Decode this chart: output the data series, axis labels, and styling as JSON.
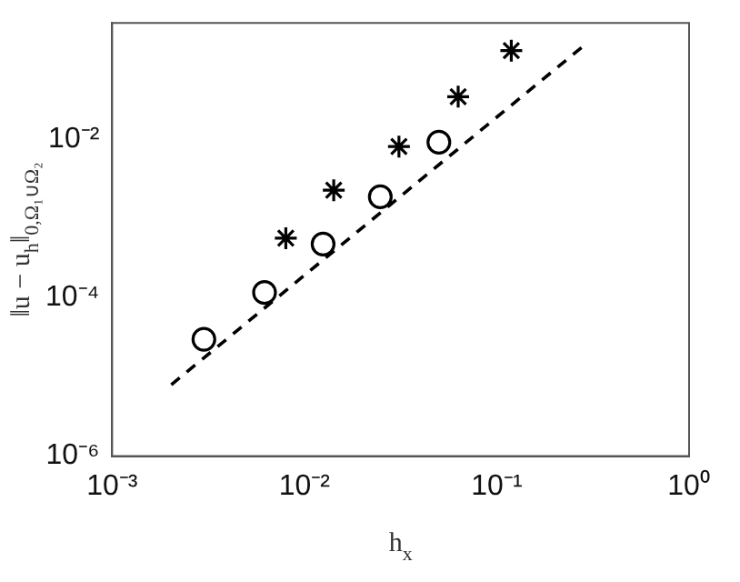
{
  "chart_data": {
    "type": "scatter",
    "xlabel": "h$_{x}$",
    "ylabel": "‖u − u$_{h}$‖$_{0,Ω₁∪Ω₂}$",
    "log": "xy",
    "grid": false,
    "legend": false,
    "xlim": [
      0.001,
      1
    ],
    "ylim": [
      1e-06,
      0.3
    ],
    "xticks": [
      {
        "value": 0.001,
        "label": "10⁻³"
      },
      {
        "value": 0.01,
        "label": "10⁻²"
      },
      {
        "value": 0.1,
        "label": "10⁻¹"
      },
      {
        "value": 1,
        "label": "10⁰"
      }
    ],
    "yticks": [
      {
        "value": 1e-06,
        "label": "10⁻⁶"
      },
      {
        "value": 0.0001,
        "label": "10⁻⁴"
      },
      {
        "value": 0.01,
        "label": "10⁻²"
      }
    ],
    "series": [
      {
        "type": "scatter",
        "color": "#000000",
        "marker": "circle",
        "x": [
          0.003,
          0.0062,
          0.0125,
          0.0248,
          0.05
        ],
        "values": [
          3e-05,
          0.000117,
          0.00048,
          0.0019,
          0.0093
        ]
      },
      {
        "type": "scatter",
        "color": "#000000",
        "marker": "cross",
        "x": [
          0.008,
          0.0142,
          0.031,
          0.063,
          0.119
        ],
        "values": [
          0.00057,
          0.0023,
          0.0082,
          0.035,
          0.134
        ]
      },
      {
        "type": "line",
        "color": "#000000",
        "marker": "none",
        "line_style": "dashed",
        "x": [
          0.00203,
          0.291
        ],
        "values": [
          8e-06,
          0.163
        ]
      }
    ]
  }
}
